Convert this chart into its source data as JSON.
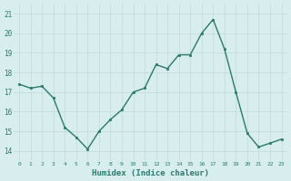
{
  "x": [
    0,
    1,
    2,
    3,
    4,
    5,
    6,
    7,
    8,
    9,
    10,
    11,
    12,
    13,
    14,
    15,
    16,
    17,
    18,
    19,
    20,
    21,
    22,
    23
  ],
  "y": [
    17.4,
    17.2,
    17.3,
    16.7,
    15.2,
    14.7,
    14.1,
    15.0,
    15.6,
    16.1,
    17.0,
    17.2,
    18.4,
    18.2,
    18.9,
    18.9,
    20.0,
    20.7,
    19.2,
    17.0,
    14.9,
    14.2,
    14.4,
    14.6
  ],
  "xlabel": "Humidex (Indice chaleur)",
  "ylim": [
    13.5,
    21.5
  ],
  "xlim": [
    -0.5,
    23.5
  ],
  "yticks": [
    14,
    15,
    16,
    17,
    18,
    19,
    20,
    21
  ],
  "xtick_labels": [
    "0",
    "1",
    "2",
    "3",
    "4",
    "5",
    "6",
    "7",
    "8",
    "9",
    "10",
    "11",
    "12",
    "13",
    "14",
    "15",
    "16",
    "17",
    "18",
    "19",
    "20",
    "21",
    "22",
    "23"
  ],
  "line_color": "#2a7a6e",
  "marker_color": "#2a7a6e",
  "bg_color": "#d8eded",
  "grid_color": "#c0dada",
  "tick_color": "#2a7a6e",
  "xlabel_color": "#2a7a6e"
}
